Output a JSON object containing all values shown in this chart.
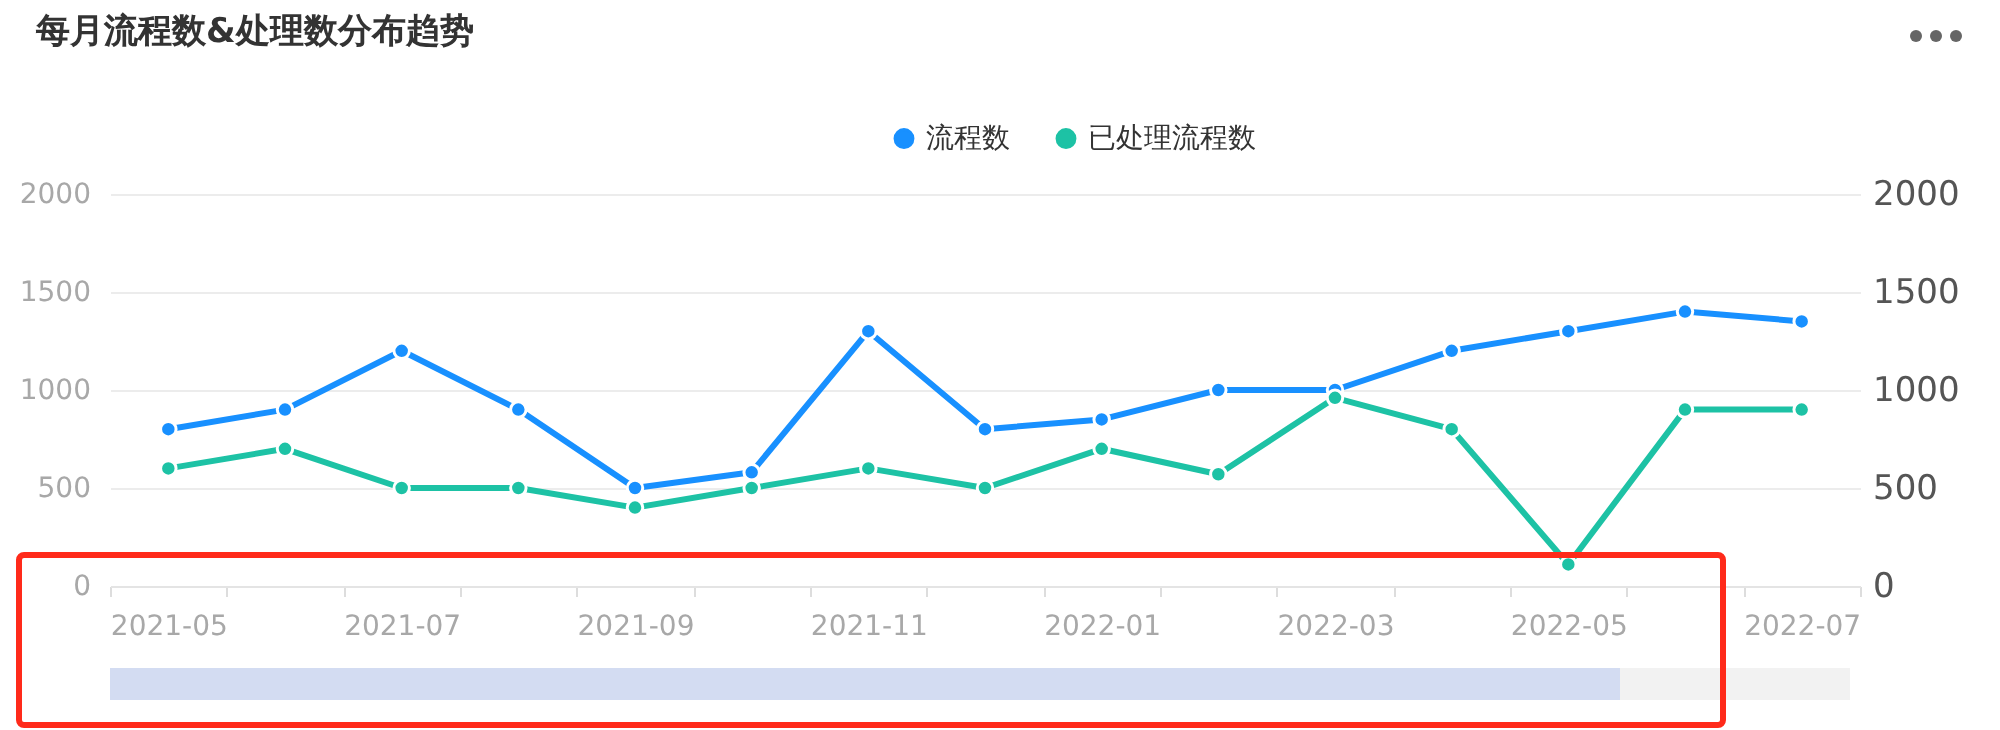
{
  "chart_data": {
    "type": "line",
    "title": "每月流程数&处理数分布趋势",
    "categories": [
      "2021-05",
      null,
      "2021-07",
      null,
      "2021-09",
      null,
      "2021-11",
      null,
      "2022-01",
      null,
      "2022-03",
      null,
      "2022-05",
      null,
      "2022-07"
    ],
    "series": [
      {
        "name": "流程数",
        "color": "#1890ff",
        "values": [
          800,
          900,
          1200,
          900,
          500,
          580,
          1300,
          800,
          850,
          1000,
          1000,
          1200,
          1300,
          1400,
          1350
        ]
      },
      {
        "name": "已处理流程数",
        "color": "#1dc2a5",
        "axis": "y2",
        "values": [
          600,
          700,
          500,
          500,
          400,
          500,
          600,
          500,
          700,
          570,
          960,
          800,
          110,
          900,
          900
        ]
      }
    ],
    "ylim": [
      0,
      2000
    ],
    "yticks": [
      0,
      500,
      1000,
      1500,
      2000
    ],
    "y2lim": [
      0,
      2000
    ],
    "y2ticks": [
      0,
      500,
      1000,
      1500,
      2000
    ],
    "grid": "y",
    "legend": "top",
    "marker": "circle",
    "line_style": "solid"
  }
}
